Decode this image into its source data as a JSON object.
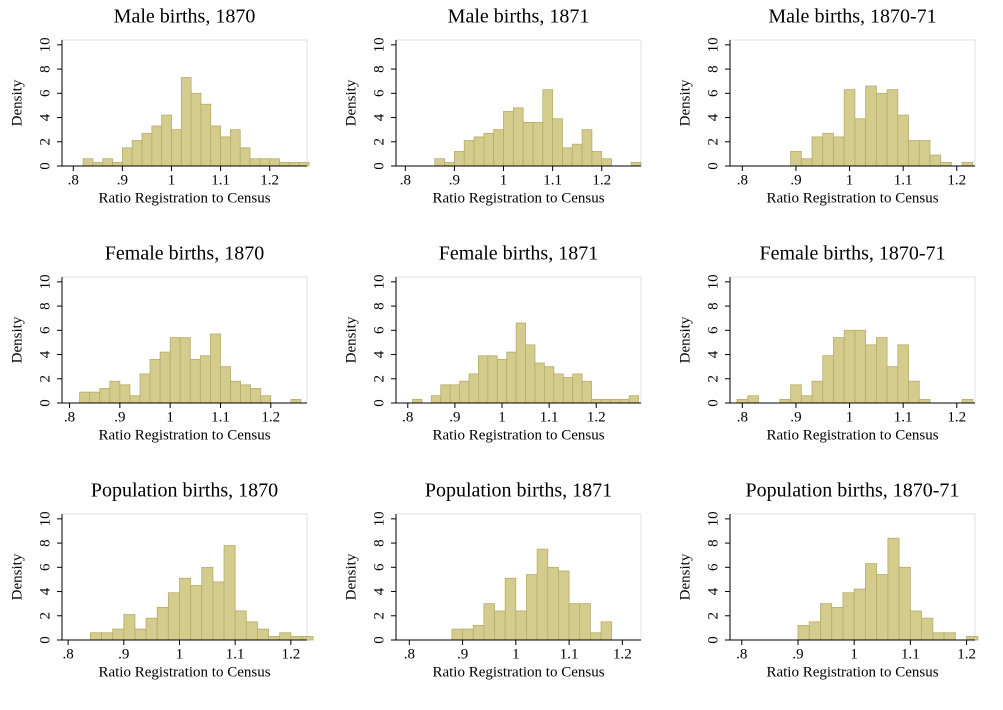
{
  "chart_data": [
    {
      "type": "histogram",
      "title": "Male births, 1870",
      "xlabel": "Ratio Registration to Census",
      "ylabel": "Density",
      "color": "#d4cc8c",
      "bins": [
        0.82,
        0.84,
        0.86,
        0.88,
        0.9,
        0.92,
        0.94,
        0.96,
        0.98,
        1.0,
        1.02,
        1.04,
        1.06,
        1.08,
        1.1,
        1.12,
        1.14,
        1.16,
        1.18,
        1.2,
        1.22,
        1.24,
        1.26,
        1.28
      ],
      "values": [
        0.6,
        0.3,
        0.6,
        0.3,
        1.5,
        2.1,
        2.7,
        3.3,
        4.2,
        3.0,
        7.3,
        6.0,
        5.1,
        3.3,
        2.4,
        3.0,
        1.5,
        0.6,
        0.6,
        0.6,
        0.3,
        0.3,
        0.3
      ],
      "xlim": [
        0.777,
        1.276
      ],
      "ylim": [
        0,
        10.4
      ],
      "xticks": [
        {
          "value": 0.8,
          "label": ".8"
        },
        {
          "value": 0.9,
          "label": ".9"
        },
        1,
        1.1,
        1.2
      ],
      "yticks": [
        0,
        2,
        4,
        6,
        8,
        10
      ]
    },
    {
      "type": "histogram",
      "title": "Male births, 1871",
      "xlabel": "Ratio Registration to Census",
      "ylabel": "Density",
      "color": "#d4cc8c",
      "bins": [
        0.8,
        0.82,
        0.84,
        0.86,
        0.88,
        0.9,
        0.92,
        0.94,
        0.96,
        0.98,
        1.0,
        1.02,
        1.04,
        1.06,
        1.08,
        1.1,
        1.12,
        1.14,
        1.16,
        1.18,
        1.2,
        1.22,
        1.24,
        1.26,
        1.28
      ],
      "values": [
        0,
        0,
        0,
        0.6,
        0.3,
        1.2,
        2.1,
        2.4,
        2.7,
        3.0,
        4.5,
        4.8,
        3.6,
        3.6,
        6.3,
        3.9,
        1.5,
        1.8,
        3.0,
        1.2,
        0.6,
        0,
        0,
        0.3
      ],
      "xlim": [
        0.781,
        1.28
      ],
      "ylim": [
        0,
        10.4
      ],
      "xticks": [
        {
          "value": 0.8,
          "label": ".8"
        },
        {
          "value": 0.9,
          "label": ".9"
        },
        1,
        1.1,
        1.2
      ],
      "yticks": [
        0,
        2,
        4,
        6,
        8,
        10
      ]
    },
    {
      "type": "histogram",
      "title": "Male births, 1870-71",
      "xlabel": "Ratio Registration to Census",
      "ylabel": "Density",
      "color": "#d4cc8c",
      "bins": [
        0.79,
        0.81,
        0.83,
        0.85,
        0.87,
        0.89,
        0.91,
        0.93,
        0.95,
        0.97,
        0.99,
        1.01,
        1.03,
        1.05,
        1.07,
        1.09,
        1.11,
        1.13,
        1.15,
        1.17,
        1.19,
        1.21,
        1.23
      ],
      "values": [
        0,
        0,
        0,
        0,
        0,
        1.2,
        0.6,
        2.4,
        2.7,
        2.4,
        6.3,
        3.9,
        6.6,
        6.0,
        6.3,
        4.2,
        2.1,
        2.1,
        0.9,
        0.3,
        0,
        0.3
      ],
      "xlim": [
        0.777,
        1.234
      ],
      "ylim": [
        0,
        10.4
      ],
      "xticks": [
        {
          "value": 0.8,
          "label": ".8"
        },
        {
          "value": 0.9,
          "label": ".9"
        },
        1,
        1.1,
        1.2
      ],
      "yticks": [
        0,
        2,
        4,
        6,
        8,
        10
      ]
    },
    {
      "type": "histogram",
      "title": "Female births, 1870",
      "xlabel": "Ratio Registration to Census",
      "ylabel": "Density",
      "color": "#d4cc8c",
      "bins": [
        0.82,
        0.84,
        0.86,
        0.88,
        0.9,
        0.92,
        0.94,
        0.96,
        0.98,
        1.0,
        1.02,
        1.04,
        1.06,
        1.08,
        1.1,
        1.12,
        1.14,
        1.16,
        1.18,
        1.2,
        1.22,
        1.24,
        1.26
      ],
      "values": [
        0.9,
        0.9,
        1.2,
        1.8,
        1.5,
        0.6,
        2.4,
        3.6,
        4.2,
        5.4,
        5.4,
        3.6,
        3.9,
        5.7,
        3.0,
        1.8,
        1.5,
        1.2,
        0.6,
        0,
        0,
        0.3
      ],
      "xlim": [
        0.785,
        1.272
      ],
      "ylim": [
        0,
        10.4
      ],
      "xticks": [
        {
          "value": 0.8,
          "label": ".8"
        },
        {
          "value": 0.9,
          "label": ".9"
        },
        1,
        1.1,
        1.2
      ],
      "yticks": [
        0,
        2,
        4,
        6,
        8,
        10
      ]
    },
    {
      "type": "histogram",
      "title": "Female births, 1871",
      "xlabel": "Ratio Registration to Census",
      "ylabel": "Density",
      "color": "#d4cc8c",
      "bins": [
        0.79,
        0.81,
        0.83,
        0.85,
        0.87,
        0.89,
        0.91,
        0.93,
        0.95,
        0.97,
        0.99,
        1.01,
        1.03,
        1.05,
        1.07,
        1.09,
        1.11,
        1.13,
        1.15,
        1.17,
        1.19,
        1.21,
        1.23,
        1.25,
        1.27,
        1.29
      ],
      "values": [
        0,
        0.3,
        0,
        0.6,
        1.5,
        1.5,
        1.8,
        2.4,
        3.9,
        3.9,
        3.6,
        4.2,
        6.6,
        4.8,
        3.3,
        3.0,
        2.4,
        2.1,
        2.4,
        1.8,
        0.3,
        0.3,
        0.3,
        0.3,
        0.6
      ],
      "xlim": [
        0.775,
        1.295
      ],
      "ylim": [
        0,
        10.4
      ],
      "xticks": [
        {
          "value": 0.8,
          "label": ".8"
        },
        {
          "value": 0.9,
          "label": ".9"
        },
        1,
        1.1,
        1.2
      ],
      "yticks": [
        0,
        2,
        4,
        6,
        8,
        10
      ]
    },
    {
      "type": "histogram",
      "title": "Female births, 1870-71",
      "xlabel": "Ratio Registration to Census",
      "ylabel": "Density",
      "color": "#d4cc8c",
      "bins": [
        0.79,
        0.81,
        0.83,
        0.85,
        0.87,
        0.89,
        0.91,
        0.93,
        0.95,
        0.97,
        0.99,
        1.01,
        1.03,
        1.05,
        1.07,
        1.09,
        1.11,
        1.13,
        1.15,
        1.17,
        1.19,
        1.21,
        1.23
      ],
      "values": [
        0.3,
        0.6,
        0,
        0,
        0.3,
        1.5,
        0.6,
        1.8,
        3.9,
        5.4,
        6.0,
        6.0,
        4.8,
        5.4,
        3.0,
        4.8,
        1.8,
        0.3,
        0,
        0,
        0,
        0.3
      ],
      "xlim": [
        0.777,
        1.234
      ],
      "ylim": [
        0,
        10.4
      ],
      "xticks": [
        {
          "value": 0.8,
          "label": ".8"
        },
        {
          "value": 0.9,
          "label": ".9"
        },
        1,
        1.1,
        1.2
      ],
      "yticks": [
        0,
        2,
        4,
        6,
        8,
        10
      ]
    },
    {
      "type": "histogram",
      "title": "Population births, 1870",
      "xlabel": "Ratio Registration to Census",
      "ylabel": "Density",
      "color": "#d4cc8c",
      "bins": [
        0.82,
        0.84,
        0.86,
        0.88,
        0.9,
        0.92,
        0.94,
        0.96,
        0.98,
        1.0,
        1.02,
        1.04,
        1.06,
        1.08,
        1.1,
        1.12,
        1.14,
        1.16,
        1.18,
        1.2,
        1.22,
        1.24
      ],
      "values": [
        0,
        0.6,
        0.6,
        0.9,
        2.1,
        0.9,
        1.8,
        2.7,
        3.9,
        5.1,
        4.5,
        6.0,
        4.8,
        7.8,
        2.4,
        1.5,
        0.9,
        0.3,
        0.6,
        0.3,
        0.3
      ],
      "xlim": [
        0.789,
        1.229
      ],
      "ylim": [
        0,
        10.4
      ],
      "xticks": [
        {
          "value": 0.8,
          "label": ".8"
        },
        {
          "value": 0.9,
          "label": ".9"
        },
        1,
        1.1,
        1.2
      ],
      "yticks": [
        0,
        2,
        4,
        6,
        8,
        10
      ]
    },
    {
      "type": "histogram",
      "title": "Population births, 1871",
      "xlabel": "Ratio Registration to Census",
      "ylabel": "Density",
      "color": "#d4cc8c",
      "bins": [
        0.78,
        0.8,
        0.82,
        0.84,
        0.86,
        0.88,
        0.9,
        0.92,
        0.94,
        0.96,
        0.98,
        1.0,
        1.02,
        1.04,
        1.06,
        1.08,
        1.1,
        1.12,
        1.14,
        1.16,
        1.18,
        1.2,
        1.22
      ],
      "values": [
        0,
        0,
        0,
        0,
        0,
        0.9,
        0.9,
        1.2,
        3.0,
        2.4,
        5.1,
        2.4,
        5.4,
        7.5,
        6.0,
        5.7,
        3.0,
        3.0,
        0.6,
        1.5,
        0,
        0
      ],
      "xlim": [
        0.775,
        1.235
      ],
      "ylim": [
        0,
        10.4
      ],
      "xticks": [
        {
          "value": 0.8,
          "label": ".8"
        },
        {
          "value": 0.9,
          "label": ".9"
        },
        1,
        1.1,
        1.2
      ],
      "yticks": [
        0,
        2,
        4,
        6,
        8,
        10
      ]
    },
    {
      "type": "histogram",
      "title": "Population births, 1870-71",
      "xlabel": "Ratio Registration to Census",
      "ylabel": "Density",
      "color": "#d4cc8c",
      "bins": [
        0.78,
        0.8,
        0.82,
        0.84,
        0.86,
        0.88,
        0.9,
        0.92,
        0.94,
        0.96,
        0.98,
        1.0,
        1.02,
        1.04,
        1.06,
        1.08,
        1.1,
        1.12,
        1.14,
        1.16,
        1.18,
        1.2,
        1.22
      ],
      "values": [
        0,
        0,
        0,
        0,
        0,
        0,
        1.2,
        1.5,
        3.0,
        2.7,
        3.9,
        4.2,
        6.3,
        5.4,
        8.4,
        6.0,
        2.4,
        1.8,
        0.6,
        0.6,
        0,
        0.3
      ],
      "xlim": [
        0.779,
        1.215
      ],
      "ylim": [
        0,
        10.4
      ],
      "xticks": [
        {
          "value": 0.8,
          "label": ".8"
        },
        {
          "value": 0.9,
          "label": ".9"
        },
        1,
        1.1,
        1.2
      ],
      "yticks": [
        0,
        2,
        4,
        6,
        8,
        10
      ]
    }
  ]
}
